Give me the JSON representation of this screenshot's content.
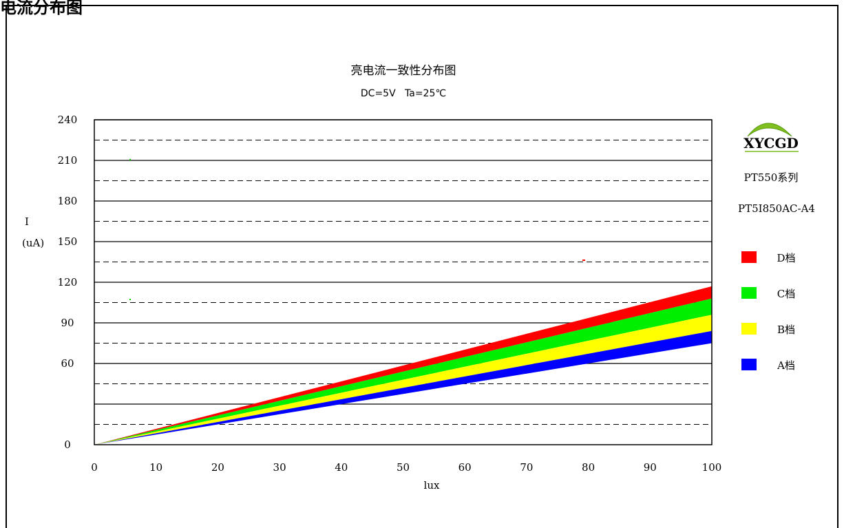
{
  "page": {
    "top_fragment": "电流分布图"
  },
  "chart_data": {
    "type": "area",
    "title": "亮电流一致性分布图",
    "subtitle": "DC=5V   Ta=25℃",
    "xlabel": "lux",
    "ylabel": "I",
    "ylabel_unit": "(uA)",
    "xlim": [
      0,
      100
    ],
    "ylim": [
      0,
      240
    ],
    "x_ticks": [
      0,
      10,
      20,
      30,
      40,
      50,
      60,
      70,
      80,
      90,
      100
    ],
    "y_ticks": [
      0,
      60,
      90,
      120,
      150,
      180,
      210,
      240
    ],
    "solid_gridlines": [
      30,
      60,
      90,
      120,
      150,
      180,
      210,
      240
    ],
    "dashed_gridlines": [
      15,
      45,
      75,
      105,
      135,
      165,
      195,
      225
    ],
    "grid": true,
    "legend_position": "right",
    "bands": [
      {
        "name": "D档",
        "color": "#ff0000",
        "x": [
          0,
          100
        ],
        "lower": [
          0,
          108
        ],
        "upper": [
          0,
          117
        ]
      },
      {
        "name": "C档",
        "color": "#00ee00",
        "x": [
          0,
          100
        ],
        "lower": [
          0,
          96
        ],
        "upper": [
          0,
          108
        ]
      },
      {
        "name": "B档",
        "color": "#ffff00",
        "x": [
          0,
          100
        ],
        "lower": [
          0,
          84
        ],
        "upper": [
          0,
          96
        ]
      },
      {
        "name": "A档",
        "color": "#0000ff",
        "x": [
          0,
          100
        ],
        "lower": [
          0,
          75
        ],
        "upper": [
          0,
          84
        ]
      }
    ],
    "legend": [
      {
        "label": "D档",
        "color": "#ff0000"
      },
      {
        "label": "C档",
        "color": "#00ee00"
      },
      {
        "label": "B档",
        "color": "#ffff00"
      },
      {
        "label": "A档",
        "color": "#0000ff"
      }
    ]
  },
  "side_panel": {
    "logo_text": "XYCGD",
    "series_label": "PT550系列",
    "model_label": "PT5I850AC-A4"
  }
}
